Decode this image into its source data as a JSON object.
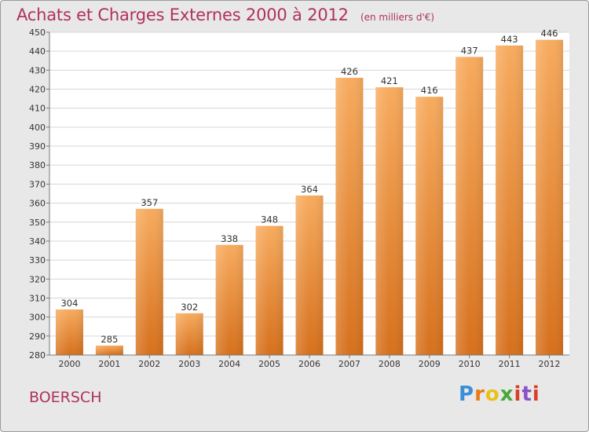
{
  "header": {
    "title": "Achats et Charges Externes 2000 à 2012",
    "unit": "(en milliers d'€)"
  },
  "footer": {
    "commune": "BOERSCH",
    "brand": "Proxiti"
  },
  "colors": {
    "title": "#b0325a",
    "bar_light": "#f6a85a",
    "bar_dark": "#d9731f",
    "background": "#e8e8e8",
    "plot_background": "#ffffff"
  },
  "chart_data": {
    "type": "bar",
    "title": "Achats et Charges Externes 2000 à 2012",
    "subtitle": "(en milliers d'€)",
    "xlabel": "",
    "ylabel": "",
    "categories": [
      "2000",
      "2001",
      "2002",
      "2003",
      "2004",
      "2005",
      "2006",
      "2007",
      "2008",
      "2009",
      "2010",
      "2011",
      "2012"
    ],
    "values": [
      304,
      285,
      357,
      302,
      338,
      348,
      364,
      426,
      421,
      416,
      437,
      443,
      446
    ],
    "ylim": [
      280,
      450
    ],
    "yticks": [
      280,
      290,
      300,
      310,
      320,
      330,
      340,
      350,
      360,
      370,
      380,
      390,
      400,
      410,
      420,
      430,
      440,
      450
    ],
    "grid": true,
    "data_labels": true,
    "legend": "none"
  }
}
